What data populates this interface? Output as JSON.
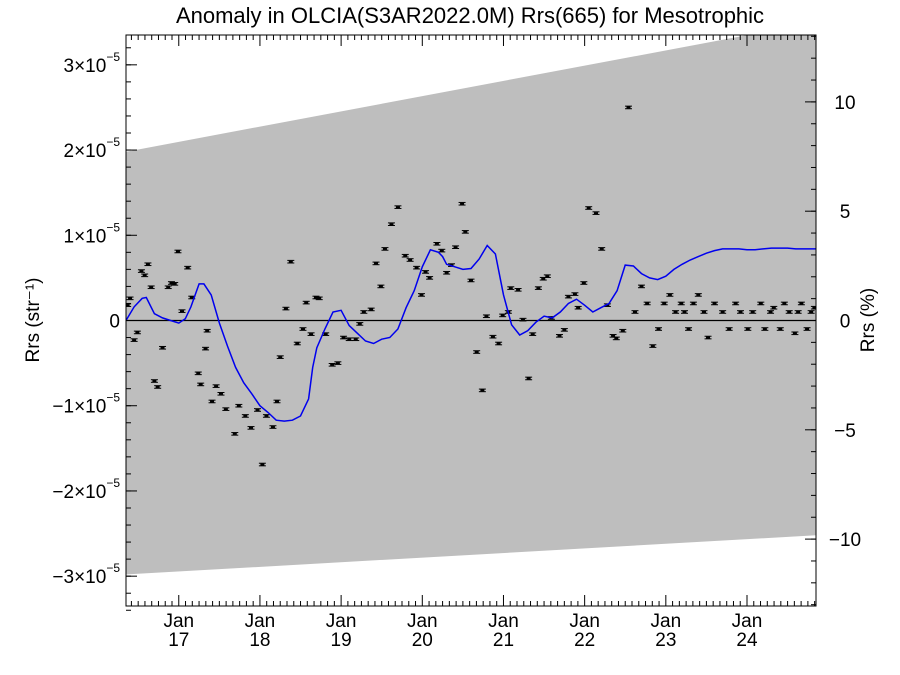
{
  "chart_data": {
    "type": "scatter",
    "title": "Anomaly in OLCIA(S3AR2022.0M) Rrs(665) for Mesotrophic",
    "ylabel_left": "Rrs (str⁻¹)",
    "ylabel_right": "Rrs (%)",
    "xlim": [
      2016.35,
      2024.85
    ],
    "ylim": [
      -3.35e-05,
      3.35e-05
    ],
    "ylim_right_percent": [
      -13.06,
      13.06
    ],
    "x_ticks": [
      {
        "value": 2017.0,
        "line1": "Jan",
        "line2": "17"
      },
      {
        "value": 2018.0,
        "line1": "Jan",
        "line2": "18"
      },
      {
        "value": 2019.0,
        "line1": "Jan",
        "line2": "19"
      },
      {
        "value": 2020.0,
        "line1": "Jan",
        "line2": "20"
      },
      {
        "value": 2021.0,
        "line1": "Jan",
        "line2": "21"
      },
      {
        "value": 2022.0,
        "line1": "Jan",
        "line2": "22"
      },
      {
        "value": 2023.0,
        "line1": "Jan",
        "line2": "23"
      },
      {
        "value": 2024.0,
        "line1": "Jan",
        "line2": "24"
      }
    ],
    "y_ticks_left": [
      {
        "value": 3e-05,
        "mant": "3×10",
        "exp": "−5"
      },
      {
        "value": 2e-05,
        "mant": "2×10",
        "exp": "−5"
      },
      {
        "value": 1e-05,
        "mant": "1×10",
        "exp": "−5"
      },
      {
        "value": 0,
        "mant": "0",
        "exp": ""
      },
      {
        "value": -1e-05,
        "mant": "−1×10",
        "exp": "−5"
      },
      {
        "value": -2e-05,
        "mant": "−2×10",
        "exp": "−5"
      },
      {
        "value": -3e-05,
        "mant": "−3×10",
        "exp": "−5"
      }
    ],
    "y_ticks_right": [
      {
        "value": 10,
        "label": "10"
      },
      {
        "value": 5,
        "label": "5"
      },
      {
        "value": 0,
        "label": "0"
      },
      {
        "value": -5,
        "label": "−5"
      },
      {
        "value": -10,
        "label": "−10"
      }
    ],
    "uncertainty_band": {
      "x": [
        2016.35,
        2024.85
      ],
      "upper": [
        1.98e-05,
        3.5e-05
      ],
      "lower": [
        -2.98e-05,
        -2.52e-05
      ],
      "color": "#bebebe"
    },
    "zero_line": true,
    "points": {
      "color": "#000000",
      "x": [
        2016.37,
        2016.4,
        2016.45,
        2016.49,
        2016.54,
        2016.58,
        2016.62,
        2016.66,
        2016.7,
        2016.74,
        2016.8,
        2016.87,
        2016.91,
        2016.95,
        2016.99,
        2017.04,
        2017.11,
        2017.16,
        2017.24,
        2017.27,
        2017.33,
        2017.35,
        2017.41,
        2017.46,
        2017.52,
        2017.58,
        2017.69,
        2017.74,
        2017.82,
        2017.89,
        2017.97,
        2018.03,
        2018.08,
        2018.16,
        2018.21,
        2018.25,
        2018.32,
        2018.38,
        2018.46,
        2018.53,
        2018.57,
        2018.63,
        2018.69,
        2018.73,
        2018.81,
        2018.89,
        2018.96,
        2019.03,
        2019.1,
        2019.18,
        2019.23,
        2019.28,
        2019.37,
        2019.43,
        2019.49,
        2019.54,
        2019.62,
        2019.7,
        2019.79,
        2019.85,
        2019.93,
        2019.99,
        2020.04,
        2020.09,
        2020.18,
        2020.24,
        2020.3,
        2020.36,
        2020.41,
        2020.49,
        2020.53,
        2020.6,
        2020.67,
        2020.74,
        2020.79,
        2020.87,
        2020.94,
        2020.99,
        2021.06,
        2021.09,
        2021.18,
        2021.24,
        2021.31,
        2021.36,
        2021.43,
        2021.49,
        2021.54,
        2021.59,
        2021.69,
        2021.75,
        2021.8,
        2021.88,
        2021.92,
        2021.99,
        2022.05,
        2022.14,
        2022.21,
        2022.28,
        2022.35,
        2022.39,
        2022.47,
        2022.54,
        2022.62,
        2022.7,
        2022.77,
        2022.84,
        2022.91,
        2022.98,
        2023.05,
        2023.12,
        2023.19,
        2023.23,
        2023.28,
        2023.34,
        2023.4,
        2023.47,
        2023.52,
        2023.6,
        2023.7,
        2023.78,
        2023.86,
        2023.92,
        2024.01,
        2024.07,
        2024.17,
        2024.22,
        2024.29,
        2024.33,
        2024.41,
        2024.46,
        2024.52,
        2024.59,
        2024.63,
        2024.67,
        2024.74,
        2024.79,
        2024.83
      ],
      "y": [
        1.8e-06,
        2.6e-06,
        -2.3e-06,
        -1.4e-06,
        5.8e-06,
        5.3e-06,
        6.6e-06,
        3.9e-06,
        -7.1e-06,
        -7.8e-06,
        -3.2e-06,
        3.9e-06,
        4.4e-06,
        4.3e-06,
        8.1e-06,
        1.1e-06,
        6.2e-06,
        2.7e-06,
        -6.2e-06,
        -7.5e-06,
        -3.3e-06,
        -1.2e-06,
        -9.5e-06,
        -7.7e-06,
        -8.6e-06,
        -1.04e-05,
        -1.33e-05,
        -1e-05,
        -1.12e-05,
        -1.26e-05,
        -1.05e-05,
        -1.69e-05,
        -1.12e-05,
        -1.25e-05,
        -9.5e-06,
        -4.3e-06,
        1.4e-06,
        6.9e-06,
        -2.7e-06,
        -1e-06,
        2.1e-06,
        -1.6e-06,
        2.7e-06,
        2.6e-06,
        -1.6e-06,
        -5.2e-06,
        -5e-06,
        -2e-06,
        -2.2e-06,
        -2.2e-06,
        -4e-07,
        1e-06,
        1.3e-06,
        6.7e-06,
        4e-06,
        8.4e-06,
        1.13e-05,
        1.33e-05,
        7.6e-06,
        7.1e-06,
        6.2e-06,
        3e-06,
        5.7e-06,
        5e-06,
        9e-06,
        8.2e-06,
        5.6e-06,
        6.5e-06,
        8.6e-06,
        1.37e-05,
        1.04e-05,
        4.7e-06,
        -3.7e-06,
        -8.2e-06,
        5e-07,
        -1.9e-06,
        -2.7e-06,
        6e-07,
        1e-06,
        3.8e-06,
        3.6e-06,
        1e-07,
        -6.8e-06,
        -1.6e-06,
        3.8e-06,
        4.9e-06,
        5.2e-06,
        3e-07,
        -1.8e-06,
        -1.1e-06,
        2.8e-06,
        3.1e-06,
        1.5e-06,
        4.4e-06,
        1.32e-05,
        1.26e-05,
        8.4e-06,
        1.8e-06,
        -1.8e-06,
        -2.1e-06,
        -1.2e-06,
        2.5e-05,
        1e-06,
        4e-06,
        2e-06,
        -3e-06,
        -1e-06,
        2e-06,
        3e-06,
        1e-06,
        2e-06,
        1e-06,
        -1e-06,
        2e-06,
        3e-06,
        1e-06,
        -2e-06,
        2e-06,
        1e-06,
        -1e-06,
        2e-06,
        1e-06,
        -1e-06,
        1e-06,
        2e-06,
        -1e-06,
        1e-06,
        1.5e-06,
        -1e-06,
        2e-06,
        1e-06,
        -1.5e-06,
        1e-06,
        2e-06,
        -1e-06,
        1e-06,
        1.5e-06
      ]
    },
    "smooth_line": {
      "color": "#0000ee",
      "x": [
        2016.35,
        2016.45,
        2016.55,
        2016.6,
        2016.7,
        2016.8,
        2016.9,
        2017.0,
        2017.08,
        2017.15,
        2017.25,
        2017.31,
        2017.4,
        2017.5,
        2017.6,
        2017.7,
        2017.8,
        2017.9,
        2018.0,
        2018.1,
        2018.2,
        2018.3,
        2018.4,
        2018.5,
        2018.6,
        2018.65,
        2018.7,
        2018.8,
        2018.9,
        2019.0,
        2019.1,
        2019.2,
        2019.3,
        2019.4,
        2019.5,
        2019.6,
        2019.7,
        2019.8,
        2019.9,
        2020.0,
        2020.1,
        2020.2,
        2020.25,
        2020.3,
        2020.4,
        2020.5,
        2020.6,
        2020.7,
        2020.8,
        2020.9,
        2021.0,
        2021.1,
        2021.2,
        2021.3,
        2021.4,
        2021.5,
        2021.6,
        2021.7,
        2021.8,
        2021.9,
        2022.0,
        2022.1,
        2022.2,
        2022.3,
        2022.4,
        2022.5,
        2022.6,
        2022.7,
        2022.8,
        2022.9,
        2023.0,
        2023.1,
        2023.2,
        2023.3,
        2023.4,
        2023.5,
        2023.6,
        2023.7,
        2023.8,
        2023.9,
        2024.0,
        2024.1,
        2024.2,
        2024.3,
        2024.4,
        2024.5,
        2024.6,
        2024.7,
        2024.8,
        2024.85
      ],
      "y": [
        0,
        1.6e-06,
        2.6e-06,
        2.7e-06,
        8e-07,
        3e-07,
        0,
        -3e-07,
        2e-07,
        1.6e-06,
        4.3e-06,
        4.3e-06,
        3e-06,
        -3e-07,
        -3e-06,
        -5.5e-06,
        -7.3e-06,
        -8.6e-06,
        -1e-05,
        -1.08e-05,
        -1.17e-05,
        -1.18e-05,
        -1.17e-05,
        -1.12e-05,
        -9.2e-06,
        -5.5e-06,
        -3.2e-06,
        -1e-06,
        1e-06,
        1.2e-06,
        -6e-07,
        -1.5e-06,
        -2.4e-06,
        -2.7e-06,
        -2.2e-06,
        -2e-06,
        -1e-06,
        1.5e-06,
        3.5e-06,
        6.3e-06,
        8.3e-06,
        8e-06,
        7.5e-06,
        6.6e-06,
        6.3e-06,
        6e-06,
        6.1e-06,
        7.2e-06,
        8.8e-06,
        7.8e-06,
        3e-06,
        -5e-07,
        -1.7e-06,
        -1.2e-06,
        -2e-07,
        5e-07,
        3e-07,
        1e-06,
        2e-06,
        2.5e-06,
        1.8e-06,
        1e-06,
        1.5e-06,
        2e-06,
        3.5e-06,
        6.5e-06,
        6.4e-06,
        5.5e-06,
        5e-06,
        4.8e-06,
        5.2e-06,
        6e-06,
        6.6e-06,
        7.1e-06,
        7.5e-06,
        7.9e-06,
        8.2e-06,
        8.4e-06,
        8.4e-06,
        8.4e-06,
        8.3e-06,
        8.3e-06,
        8.4e-06,
        8.5e-06,
        8.5e-06,
        8.5e-06,
        8.4e-06,
        8.4e-06,
        8.4e-06,
        8.4e-06
      ]
    }
  }
}
